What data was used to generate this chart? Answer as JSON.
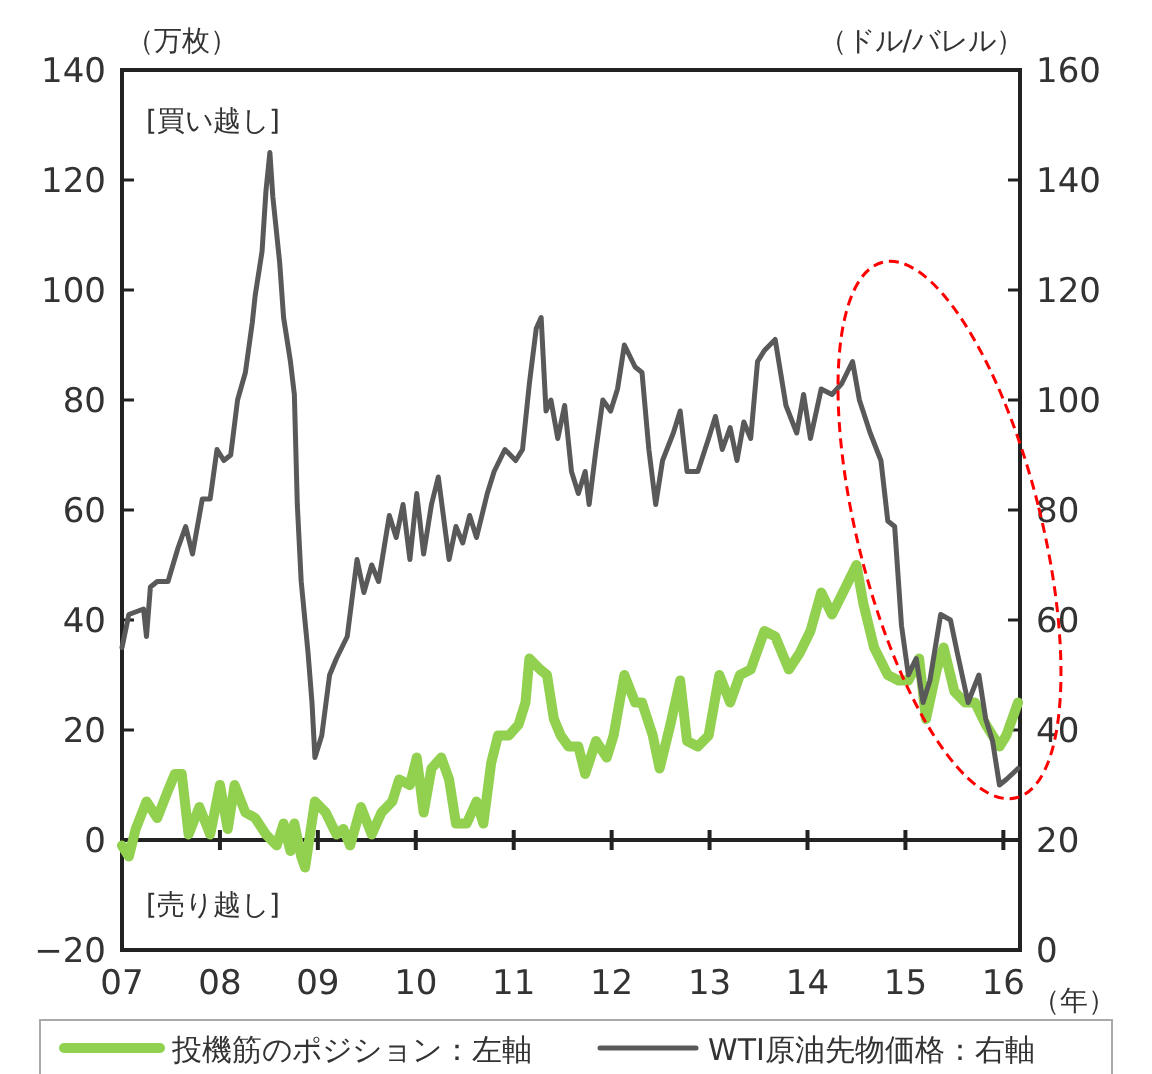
{
  "chart_data": {
    "type": "line",
    "ylabel": "（万枚）",
    "y2label": "（ドル/バレル）",
    "xlabel": "（年）",
    "annotations": [
      "[買い越し]",
      "[売り越し]"
    ],
    "xlim": [
      2007,
      2016.17
    ],
    "xticks": [
      {
        "value": 2007,
        "label": "07"
      },
      {
        "value": 2008,
        "label": "08"
      },
      {
        "value": 2009,
        "label": "09"
      },
      {
        "value": 2010,
        "label": "10"
      },
      {
        "value": 2011,
        "label": "11"
      },
      {
        "value": 2012,
        "label": "12"
      },
      {
        "value": 2013,
        "label": "13"
      },
      {
        "value": 2014,
        "label": "14"
      },
      {
        "value": 2015,
        "label": "15"
      },
      {
        "value": 2016,
        "label": "16"
      }
    ],
    "ylim": [
      -20,
      140
    ],
    "yticks": [
      -20,
      0,
      20,
      40,
      60,
      80,
      100,
      120,
      140
    ],
    "y2lim": [
      0,
      160
    ],
    "y2ticks": [
      0,
      20,
      40,
      60,
      80,
      100,
      120,
      140,
      160
    ],
    "legend": "bottom",
    "ref_lines": [
      {
        "axis": "y",
        "value": 0,
        "label": null,
        "color": "#222222"
      }
    ],
    "series": [
      {
        "name": "投機筋のポジション：左軸",
        "color": "#92d050",
        "axis": "y",
        "x": [
          2007.0,
          2007.07,
          2007.14,
          2007.25,
          2007.36,
          2007.47,
          2007.54,
          2007.61,
          2007.68,
          2007.79,
          2007.9,
          2008.0,
          2008.08,
          2008.15,
          2008.26,
          2008.36,
          2008.47,
          2008.58,
          2008.65,
          2008.72,
          2008.76,
          2008.83,
          2008.87,
          2008.97,
          2009.08,
          2009.19,
          2009.26,
          2009.33,
          2009.44,
          2009.55,
          2009.65,
          2009.76,
          2009.83,
          2009.94,
          2010.01,
          2010.08,
          2010.16,
          2010.26,
          2010.34,
          2010.41,
          2010.52,
          2010.62,
          2010.69,
          2010.77,
          2010.84,
          2010.95,
          2011.05,
          2011.12,
          2011.16,
          2011.27,
          2011.34,
          2011.41,
          2011.48,
          2011.56,
          2011.66,
          2011.73,
          2011.84,
          2011.95,
          2012.02,
          2012.13,
          2012.24,
          2012.31,
          2012.42,
          2012.49,
          2012.6,
          2012.7,
          2012.77,
          2012.88,
          2012.99,
          2013.1,
          2013.21,
          2013.31,
          2013.42,
          2013.56,
          2013.67,
          2013.81,
          2013.92,
          2014.03,
          2014.14,
          2014.25,
          2014.39,
          2014.5,
          2014.57,
          2014.68,
          2014.82,
          2014.93,
          2015.03,
          2015.14,
          2015.21,
          2015.32,
          2015.39,
          2015.5,
          2015.61,
          2015.71,
          2015.82,
          2015.89,
          2015.96,
          2016.03,
          2016.15
        ],
        "values": [
          -1,
          -3,
          2,
          7,
          4,
          9,
          12,
          12,
          1,
          6,
          1,
          10,
          2,
          10,
          5,
          4,
          1,
          -1,
          3,
          -2,
          3,
          -3,
          -5,
          7,
          5,
          1,
          2,
          -1,
          6,
          1,
          5,
          7,
          11,
          10,
          15,
          5,
          13,
          15,
          11,
          3,
          3,
          7,
          3,
          14,
          19,
          19,
          21,
          25,
          33,
          31,
          30,
          22,
          19,
          17,
          17,
          12,
          18,
          15,
          19,
          30,
          25,
          25,
          19,
          13,
          21,
          29,
          18,
          17,
          19,
          30,
          25,
          30,
          31,
          38,
          37,
          31,
          34,
          38,
          45,
          41,
          46,
          50,
          43,
          35,
          30,
          29,
          29,
          33,
          22,
          31,
          35,
          27,
          25,
          25,
          21,
          19,
          17,
          19,
          25
        ]
      },
      {
        "name": "WTI原油先物価格：右軸",
        "color": "#595959",
        "axis": "y2",
        "x": [
          2007.0,
          2007.07,
          2007.22,
          2007.25,
          2007.29,
          2007.36,
          2007.47,
          2007.57,
          2007.65,
          2007.72,
          2007.82,
          2007.9,
          2007.97,
          2008.04,
          2008.11,
          2008.18,
          2008.26,
          2008.33,
          2008.36,
          2008.43,
          2008.47,
          2008.51,
          2008.54,
          2008.61,
          2008.65,
          2008.72,
          2008.76,
          2008.79,
          2008.83,
          2008.9,
          2008.94,
          2008.97,
          2009.04,
          2009.12,
          2009.19,
          2009.3,
          2009.4,
          2009.47,
          2009.55,
          2009.62,
          2009.73,
          2009.8,
          2009.87,
          2009.94,
          2010.01,
          2010.08,
          2010.16,
          2010.23,
          2010.34,
          2010.41,
          2010.48,
          2010.55,
          2010.62,
          2010.73,
          2010.8,
          2010.91,
          2011.02,
          2011.09,
          2011.16,
          2011.23,
          2011.28,
          2011.33,
          2011.38,
          2011.45,
          2011.52,
          2011.59,
          2011.66,
          2011.73,
          2011.77,
          2011.84,
          2011.91,
          2011.99,
          2012.06,
          2012.13,
          2012.24,
          2012.31,
          2012.38,
          2012.45,
          2012.52,
          2012.63,
          2012.7,
          2012.77,
          2012.88,
          2012.99,
          2013.06,
          2013.13,
          2013.21,
          2013.28,
          2013.35,
          2013.42,
          2013.49,
          2013.56,
          2013.67,
          2013.78,
          2013.89,
          2013.96,
          2014.03,
          2014.14,
          2014.25,
          2014.35,
          2014.46,
          2014.53,
          2014.64,
          2014.75,
          2014.82,
          2014.89,
          2014.96,
          2015.03,
          2015.11,
          2015.18,
          2015.25,
          2015.36,
          2015.46,
          2015.53,
          2015.64,
          2015.75,
          2015.82,
          2015.89,
          2015.96,
          2016.03,
          2016.15
        ],
        "values": [
          55,
          61,
          62,
          57,
          66,
          67,
          67,
          73,
          77,
          72,
          82,
          82,
          91,
          89,
          90,
          100,
          105,
          114,
          119,
          127,
          138,
          145,
          137,
          125,
          115,
          107,
          101,
          81,
          67,
          54,
          45,
          35,
          39,
          50,
          53,
          57,
          71,
          65,
          70,
          67,
          79,
          75,
          81,
          71,
          83,
          72,
          81,
          86,
          71,
          77,
          74,
          79,
          75,
          83,
          87,
          91,
          89,
          91,
          103,
          113,
          115,
          98,
          100,
          93,
          99,
          87,
          83,
          87,
          81,
          91,
          100,
          98,
          102,
          110,
          106,
          105,
          91,
          81,
          89,
          94,
          98,
          87,
          87,
          93,
          97,
          91,
          95,
          89,
          96,
          93,
          107,
          109,
          111,
          99,
          94,
          101,
          93,
          102,
          101,
          103,
          107,
          100,
          94,
          89,
          78,
          77,
          59,
          50,
          53,
          45,
          49,
          61,
          60,
          54,
          45,
          50,
          42,
          38,
          30,
          31,
          33
        ]
      }
    ]
  }
}
